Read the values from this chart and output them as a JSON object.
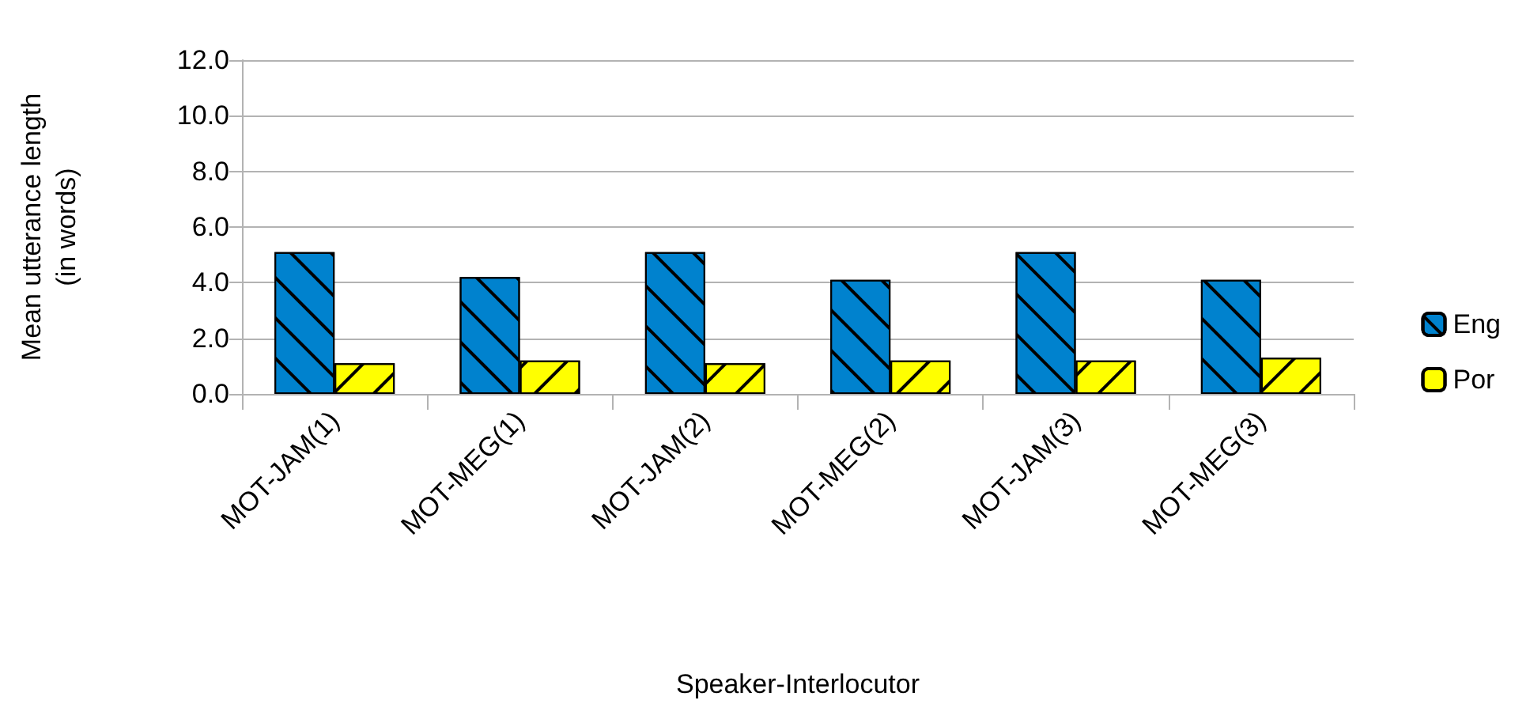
{
  "chart_data": {
    "type": "bar",
    "xlabel": "Speaker-Interlocutor",
    "ylabel": "Mean utterance length\n(in words)",
    "categories": [
      "MOT-JAM(1)",
      "MOT-MEG(1)",
      "MOT-JAM(2)",
      "MOT-MEG(2)",
      "MOT-JAM(3)",
      "MOT-MEG(3)"
    ],
    "series": [
      {
        "name": "Eng",
        "color": "#0082ce",
        "values": [
          5.1,
          4.2,
          5.1,
          4.1,
          5.1,
          4.1
        ]
      },
      {
        "name": "Por",
        "color": "#ffff00",
        "values": [
          1.1,
          1.2,
          1.1,
          1.2,
          1.2,
          1.3
        ]
      }
    ],
    "ylim": [
      0,
      12
    ],
    "yticks": [
      {
        "value": 0,
        "label": "0.0"
      },
      {
        "value": 2,
        "label": "2.0"
      },
      {
        "value": 4,
        "label": "4.0"
      },
      {
        "value": 6,
        "label": "6.0"
      },
      {
        "value": 8,
        "label": "8.0"
      },
      {
        "value": 10,
        "label": "10.0"
      },
      {
        "value": 12,
        "label": "12.0"
      }
    ],
    "grid": "y",
    "legend": "right"
  }
}
